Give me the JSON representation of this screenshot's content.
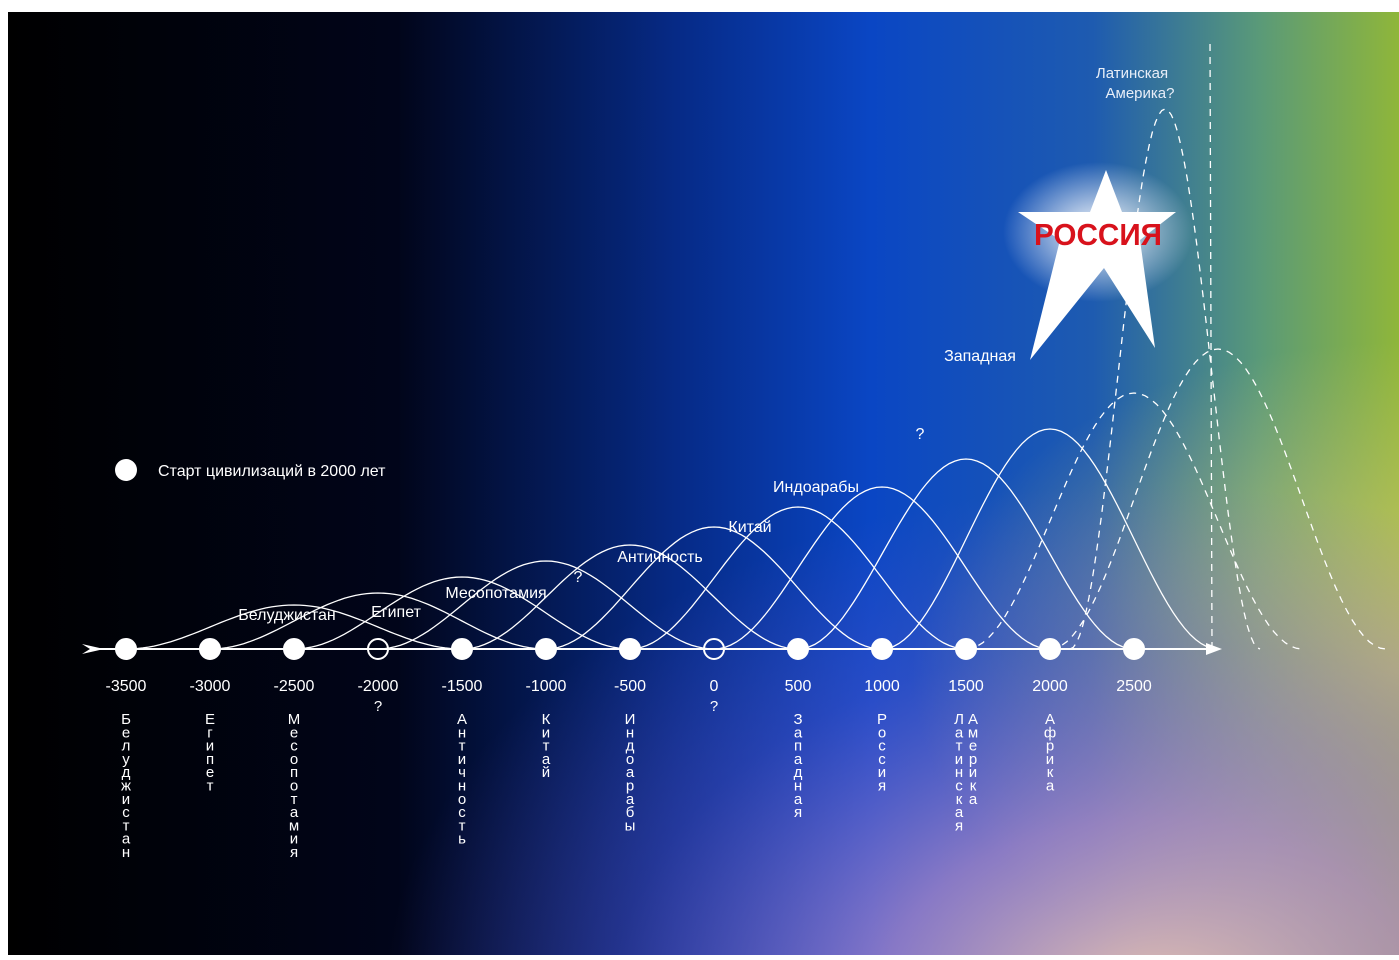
{
  "legend": {
    "label": "Старт цивилизаций в 2000 лет"
  },
  "axis": {
    "ticks": [
      "-3500",
      "-3000",
      "-2500",
      "-2000",
      "-1500",
      "-1000",
      "-500",
      "0",
      "500",
      "1000",
      "1500",
      "2000",
      "2500"
    ],
    "tick_question_marks": [
      "?",
      "?"
    ]
  },
  "civilizations": [
    {
      "name": "Белуджистан",
      "start": -3500,
      "vertical": [
        "Белуджистан"
      ],
      "solid": true,
      "peak_label": "Белуджистан"
    },
    {
      "name": "Египет",
      "start": -3000,
      "vertical": [
        "Египет"
      ],
      "solid": true,
      "peak_label": "Египет"
    },
    {
      "name": "Месопотамия",
      "start": -2500,
      "vertical": [
        "Месопотамия"
      ],
      "solid": true,
      "peak_label": "Месопотамия"
    },
    {
      "name": "?",
      "start": -2000,
      "vertical": [],
      "solid": true,
      "peak_label": "?"
    },
    {
      "name": "Античность",
      "start": -1500,
      "vertical": [
        "Античность"
      ],
      "solid": true,
      "peak_label": "Античность"
    },
    {
      "name": "Китай",
      "start": -1000,
      "vertical": [
        "Китай"
      ],
      "solid": true,
      "peak_label": "Китай"
    },
    {
      "name": "Индоарабы",
      "start": -500,
      "vertical": [
        "Индоарабы"
      ],
      "solid": true,
      "peak_label": "Индоарабы"
    },
    {
      "name": "?",
      "start": 0,
      "vertical": [],
      "solid": true,
      "peak_label": "?"
    },
    {
      "name": "Западная",
      "start": 500,
      "vertical": [
        "Западная"
      ],
      "solid": true,
      "peak_label": "Западная"
    },
    {
      "name": "Россия",
      "start": 1000,
      "vertical": [
        "Россия"
      ],
      "solid": true,
      "peak_label": "РОССИЯ"
    },
    {
      "name": "Латинская Америка",
      "start": 1500,
      "vertical": [
        "Латинская",
        "Америка"
      ],
      "solid": false,
      "peak_label": "Латинская Америка?"
    },
    {
      "name": "Африка",
      "start": 2000,
      "vertical": [
        "Африка"
      ],
      "solid": false,
      "peak_label": ""
    }
  ],
  "highlight": {
    "text": "РОССИЯ",
    "text_color": "#d8121c",
    "star_color": "#ffffff"
  },
  "colors": {
    "curve": "#ffffff",
    "axis": "#ffffff",
    "background_left": "#000000",
    "background_mid": "#0a3aa8",
    "background_right": "#8cb03a"
  }
}
